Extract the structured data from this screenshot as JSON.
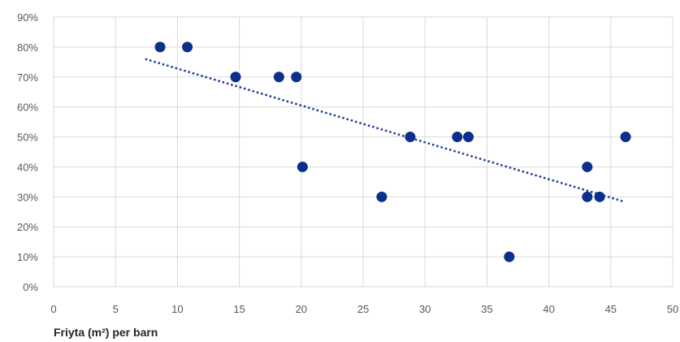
{
  "chart_data": {
    "type": "scatter",
    "title": "",
    "xlabel": "Friyta (m²) per barn",
    "ylabel": "",
    "xlim": [
      0,
      50
    ],
    "ylim": [
      0,
      0.9
    ],
    "x_ticks": [
      0,
      5,
      10,
      15,
      20,
      25,
      30,
      35,
      40,
      45,
      50
    ],
    "y_ticks": [
      0,
      0.1,
      0.2,
      0.3,
      0.4,
      0.5,
      0.6,
      0.7,
      0.8,
      0.9
    ],
    "x_tick_labels": [
      "0",
      "5",
      "10",
      "15",
      "20",
      "25",
      "30",
      "35",
      "40",
      "45",
      "50"
    ],
    "y_tick_labels": [
      "0%",
      "10%",
      "20%",
      "30%",
      "40%",
      "50%",
      "60%",
      "70%",
      "80%",
      "90%"
    ],
    "grid": true,
    "legend": "none",
    "colors": {
      "points": "#0a2f8c",
      "trendline": "#1f3a93",
      "grid": "#d9d9d9"
    },
    "series": [
      {
        "points": [
          {
            "x": 8.6,
            "y": 0.8
          },
          {
            "x": 10.8,
            "y": 0.8
          },
          {
            "x": 14.7,
            "y": 0.7
          },
          {
            "x": 18.2,
            "y": 0.7
          },
          {
            "x": 19.6,
            "y": 0.7
          },
          {
            "x": 20.1,
            "y": 0.4
          },
          {
            "x": 26.5,
            "y": 0.3
          },
          {
            "x": 28.8,
            "y": 0.5
          },
          {
            "x": 32.6,
            "y": 0.5
          },
          {
            "x": 33.5,
            "y": 0.5
          },
          {
            "x": 36.8,
            "y": 0.1
          },
          {
            "x": 43.1,
            "y": 0.4
          },
          {
            "x": 43.1,
            "y": 0.3
          },
          {
            "x": 44.1,
            "y": 0.3
          },
          {
            "x": 46.2,
            "y": 0.5
          }
        ]
      }
    ],
    "trendline": {
      "type": "linear",
      "style": "dotted",
      "start": {
        "x": 7.4,
        "y": 0.76
      },
      "end": {
        "x": 46.0,
        "y": 0.285
      }
    }
  }
}
